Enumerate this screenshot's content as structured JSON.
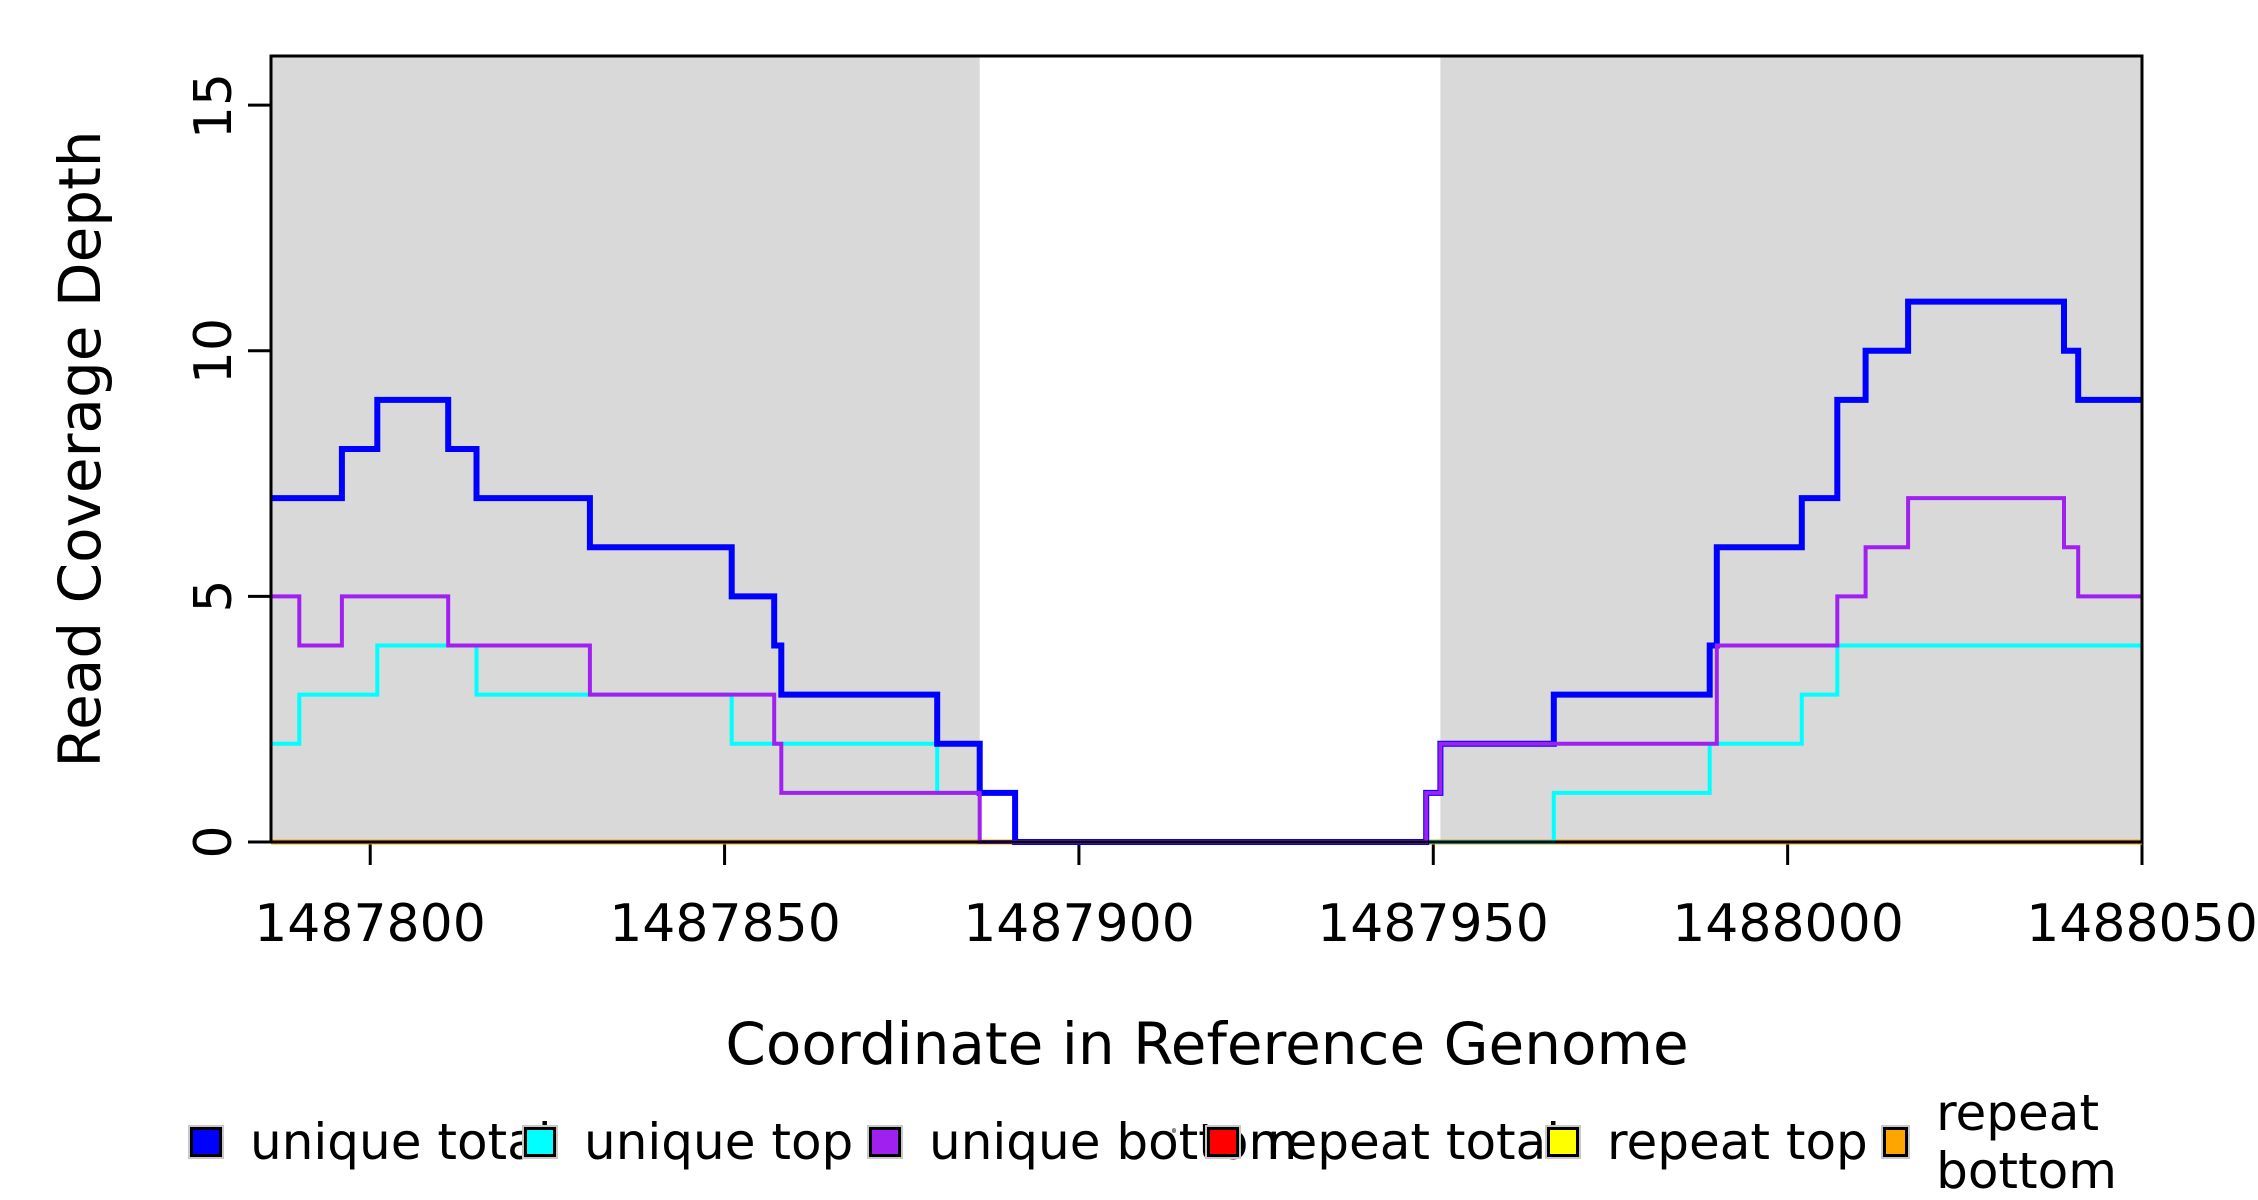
{
  "chart_data": {
    "type": "line",
    "subtype": "step-after",
    "title": "",
    "xlabel": "Coordinate in Reference Genome",
    "ylabel": "Read Coverage Depth",
    "xlim": [
      1487786,
      1488050
    ],
    "ylim": [
      0,
      16
    ],
    "x_ticks": [
      1487800,
      1487850,
      1487900,
      1487950,
      1488000,
      1488050
    ],
    "x_tick_labels": [
      "1487800",
      "1487850",
      "1487900",
      "1487950",
      "1488000",
      "1488050"
    ],
    "y_ticks": [
      0,
      5,
      10,
      15
    ],
    "y_tick_labels": [
      "0",
      "5",
      "10",
      "15"
    ],
    "grid": false,
    "legend_position": "bottom",
    "background_color": "#FFFFFF",
    "shade_color": "#D9D9D9",
    "axis_color": "#000000",
    "shaded_regions": [
      [
        1487786,
        1487886
      ],
      [
        1487951,
        1488050
      ]
    ],
    "draw_order": [
      "repeat total",
      "repeat top",
      "repeat bottom",
      "unique top",
      "unique total",
      "unique bottom"
    ],
    "series": [
      {
        "name": "unique total",
        "color": "#0000FF",
        "width": 6,
        "points": [
          [
            1487786,
            7
          ],
          [
            1487796,
            8
          ],
          [
            1487801,
            9
          ],
          [
            1487811,
            8
          ],
          [
            1487815,
            7
          ],
          [
            1487831,
            6
          ],
          [
            1487851,
            5
          ],
          [
            1487857,
            4
          ],
          [
            1487858,
            3
          ],
          [
            1487880,
            2
          ],
          [
            1487886,
            1
          ],
          [
            1487891,
            0
          ],
          [
            1487949,
            1
          ],
          [
            1487951,
            2
          ],
          [
            1487967,
            3
          ],
          [
            1487989,
            4
          ],
          [
            1487990,
            6
          ],
          [
            1488002,
            7
          ],
          [
            1488007,
            9
          ],
          [
            1488011,
            10
          ],
          [
            1488017,
            11
          ],
          [
            1488039,
            10
          ],
          [
            1488041,
            9
          ],
          [
            1488050,
            9
          ]
        ]
      },
      {
        "name": "unique top",
        "color": "#00FFFF",
        "width": 4,
        "points": [
          [
            1487786,
            2
          ],
          [
            1487790,
            3
          ],
          [
            1487801,
            4
          ],
          [
            1487815,
            3
          ],
          [
            1487851,
            2
          ],
          [
            1487880,
            1
          ],
          [
            1487891,
            0
          ],
          [
            1487967,
            1
          ],
          [
            1487989,
            2
          ],
          [
            1488002,
            3
          ],
          [
            1488007,
            4
          ],
          [
            1488050,
            4
          ]
        ]
      },
      {
        "name": "unique bottom",
        "color": "#A020F0",
        "width": 4,
        "points": [
          [
            1487786,
            5
          ],
          [
            1487790,
            4
          ],
          [
            1487796,
            5
          ],
          [
            1487811,
            4
          ],
          [
            1487831,
            3
          ],
          [
            1487857,
            2
          ],
          [
            1487858,
            1
          ],
          [
            1487886,
            0
          ],
          [
            1487949,
            1
          ],
          [
            1487951,
            2
          ],
          [
            1487990,
            4
          ],
          [
            1488007,
            5
          ],
          [
            1488011,
            6
          ],
          [
            1488017,
            7
          ],
          [
            1488039,
            6
          ],
          [
            1488041,
            5
          ],
          [
            1488050,
            5
          ]
        ]
      },
      {
        "name": "repeat total",
        "color": "#FF0000",
        "width": 4,
        "points": [
          [
            1487786,
            0
          ],
          [
            1488050,
            0
          ]
        ]
      },
      {
        "name": "repeat top",
        "color": "#FFFF00",
        "width": 4,
        "points": [
          [
            1487786,
            0
          ],
          [
            1488050,
            0
          ]
        ]
      },
      {
        "name": "repeat bottom",
        "color": "#FFA500",
        "width": 5,
        "points": [
          [
            1487786,
            0
          ],
          [
            1488050,
            0
          ]
        ]
      }
    ],
    "legend": {
      "entries": [
        {
          "label": "unique total",
          "color": "#0000FF"
        },
        {
          "label": "unique top",
          "color": "#00FFFF"
        },
        {
          "label": "unique bottom",
          "color": "#A020F0"
        },
        {
          "label": "repeat total",
          "color": "#FF0000"
        },
        {
          "label": "repeat top",
          "color": "#FFFF00"
        },
        {
          "label": "repeat bottom",
          "color": "#FFA500"
        }
      ]
    }
  }
}
